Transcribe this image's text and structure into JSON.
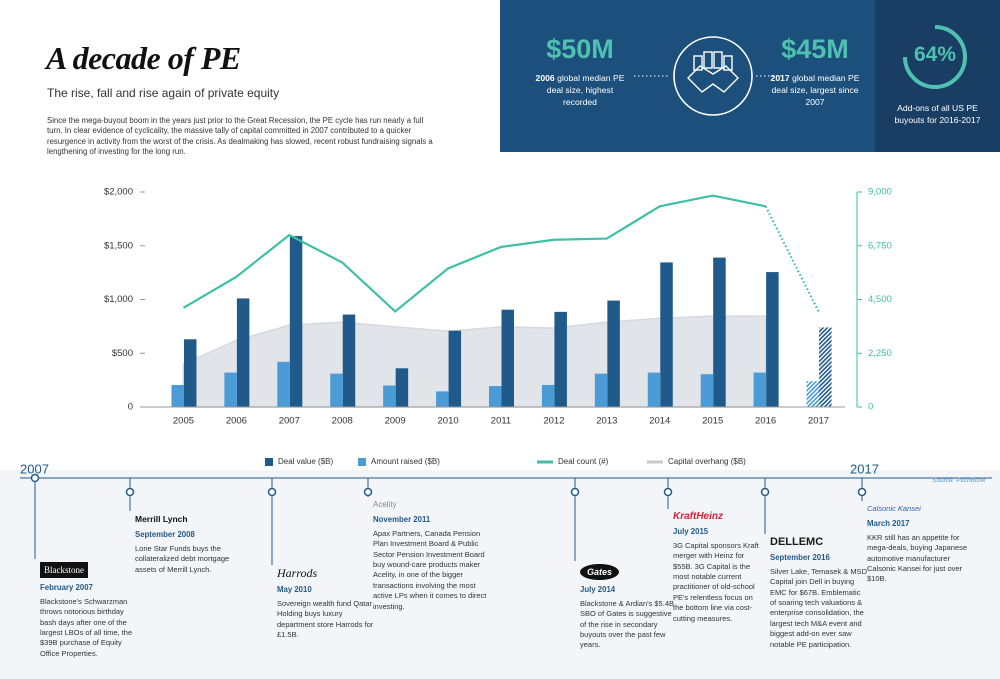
{
  "header": {
    "title": "A decade of PE",
    "subtitle": "The rise, fall and rise again of private equity",
    "intro": "Since the mega-buyout boom in the years just prior to the Great Recession, the PE cycle has run nearly a full turn. In clear evidence of cyclicality, the massive tally of capital committed in 2007 contributed to a quicker resurgence in activity from the worst of the crisis. As dealmaking has slowed, recent robust fundraising signals a lengthening of investing for the long run."
  },
  "stats": [
    {
      "value": "$50M",
      "year": "2006",
      "text": "global median PE deal size, highest recorded"
    },
    {
      "value": "$45M",
      "year": "2017",
      "text": "global median PE deal size, largest since 2007"
    },
    {
      "value": "64%",
      "text": "Add-ons of all US PE buyouts for 2016-2017"
    }
  ],
  "chart_data": {
    "type": "combo",
    "categories": [
      "2005",
      "2006",
      "2007",
      "2008",
      "2009",
      "2010",
      "2011",
      "2012",
      "2013",
      "2014",
      "2015",
      "2016",
      "2017"
    ],
    "series": [
      {
        "name": "Deal value ($B)",
        "type": "bar",
        "color": "#1f5a8a",
        "values": [
          630,
          1010,
          1590,
          860,
          360,
          710,
          905,
          885,
          990,
          1345,
          1390,
          1255,
          740
        ]
      },
      {
        "name": "Amount raised ($B)",
        "type": "bar",
        "color": "#4a9bd6",
        "values": [
          205,
          320,
          420,
          310,
          200,
          145,
          195,
          205,
          310,
          320,
          305,
          320,
          240
        ]
      },
      {
        "name": "Deal count (#)",
        "type": "line",
        "axis": "y2",
        "color": "#3dbfa8",
        "values": [
          4150,
          5450,
          7200,
          6050,
          4000,
          5800,
          6700,
          7000,
          7050,
          8400,
          8850,
          8400,
          4000
        ]
      },
      {
        "name": "Capital overhang ($B)",
        "type": "area",
        "color": "#d5d9e0",
        "values": [
          400,
          620,
          760,
          790,
          745,
          705,
          745,
          735,
          790,
          825,
          845,
          845,
          null
        ]
      }
    ],
    "ylim": [
      0,
      2000
    ],
    "yticks": [
      0,
      {
        "value": 500,
        "label": "$500"
      },
      {
        "value": 1000,
        "label": "$1,000"
      },
      {
        "value": 1500,
        "label": "$1,500"
      },
      {
        "value": 2000,
        "label": "$2,000"
      }
    ],
    "y2lim": [
      0,
      9000
    ],
    "y2ticks": [
      0,
      {
        "value": 2250,
        "label": "2,250"
      },
      {
        "value": 4500,
        "label": "4,500"
      },
      {
        "value": 6750,
        "label": "6,750"
      },
      {
        "value": 9000,
        "label": "9,000"
      }
    ],
    "grid": false
  },
  "source": "Source: PitchBook",
  "timeline": {
    "start": "2007",
    "end": "2017",
    "events": [
      {
        "logo": "Blackstone",
        "date": "February 2007",
        "text": "Blackstone's Schwarzman throws notorious birthday bash days after one of the largest LBOs of all time, the $39B purchase of Equity Office Properties."
      },
      {
        "logo": "Merrill Lynch",
        "date": "September 2008",
        "text": "Lone Star Funds buys the collateralized debt mortgage assets of Merrill Lynch."
      },
      {
        "logo": "Harrods",
        "date": "May 2010",
        "text": "Sovereign wealth fund Qatar Holding buys luxury department store Harrods for £1.5B."
      },
      {
        "logo": "Acelity",
        "date": "November 2011",
        "text": "Apax Partners, Canada Pension Plan Investment Board & Public Sector Pension Investment Board buy wound-care products maker Acelity, in one of the bigger transactions involving the most active LPs when it comes to direct investing."
      },
      {
        "logo": "Gates",
        "date": "July 2014",
        "text": "Blackstone & Ardian's $5.4B SBO of Gates is suggestive of the rise in secondary buyouts over the past few years."
      },
      {
        "logo": "KraftHeinz",
        "date": "July 2015",
        "text": "3G Capital sponsors Kraft merger with Heinz for $55B. 3G Capital is the most notable current practitioner of old-school PE's relentless focus on the bottom line via cost-cutting measures."
      },
      {
        "logo": "DELLEMC",
        "date": "September 2016",
        "text": "Silver Lake, Temasek & MSD Capital join Dell in buying EMC for $67B. Emblematic of soaring tech valuations & enterprise consolidation, the largest tech M&A event and biggest add-on ever saw notable PE participation."
      },
      {
        "logo": "Calsonic Kansei",
        "date": "March 2017",
        "text": "KKR still has an appetite for mega-deals, buying Japanese automotive manufacturer Calsonic Kansei for just over $10B."
      }
    ]
  }
}
